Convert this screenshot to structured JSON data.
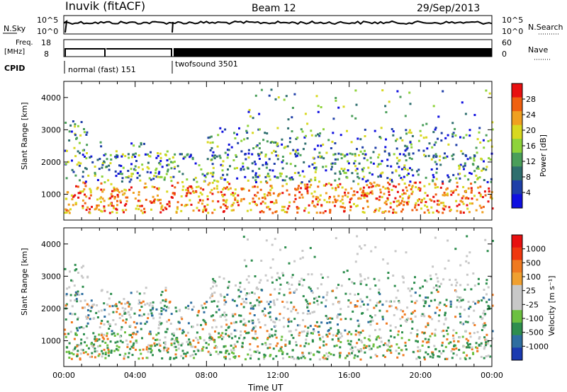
{
  "header": {
    "station": "Inuvik (fitACF)",
    "beam": "Beam 12",
    "date": "29/Sep/2013"
  },
  "panels": {
    "nsky_label": "N.Sky",
    "nsearch_label": "N.Search",
    "freq_label_line1": "Freq.",
    "freq_label_line2": "[MHz]",
    "nave_label": "Nave",
    "cpid_label": "CPID",
    "nsky_ticks": [
      "10^5",
      "10^0"
    ],
    "nsearch_ticks": [
      "10^5",
      "10^0"
    ],
    "freq_ticks": [
      "18",
      "8"
    ],
    "nave_ticks": [
      "60",
      "0"
    ],
    "cpid_segments": [
      {
        "label": "normal (fast) 151",
        "start_hour": 0,
        "end_hour": 6
      },
      {
        "label": "twofsound 3501",
        "start_hour": 6,
        "end_hour": 24
      }
    ]
  },
  "colors": {
    "power": [
      "#1010e0",
      "#1f3fa8",
      "#2e6e6e",
      "#4a9e5a",
      "#8ed33a",
      "#d8d820",
      "#f0a020",
      "#f06010",
      "#e81010"
    ],
    "velocity": [
      "#e81010",
      "#f03810",
      "#f07a20",
      "#f0a030",
      "#c8c8c8",
      "#c8c8c8",
      "#6cc040",
      "#2e8e4e",
      "#2e6ea0",
      "#1a3ab0"
    ]
  },
  "chart_data": [
    {
      "type": "heatmap",
      "title": "Power",
      "xlabel": "",
      "ylabel": "Slant Range [km]",
      "xlim": [
        0,
        24
      ],
      "ylim": [
        200,
        4500
      ],
      "y_ticks": [
        "1000",
        "2000",
        "3000",
        "4000"
      ],
      "colorbar_label": "Power [dB]",
      "colorbar_ticks": [
        "4",
        "8",
        "12",
        "16",
        "20",
        "24",
        "28"
      ],
      "colorbar_range": [
        0,
        30
      ]
    },
    {
      "type": "heatmap",
      "title": "Velocity",
      "xlabel": "Time UT",
      "ylabel": "Slant Range [km]",
      "xlim": [
        0,
        24
      ],
      "ylim": [
        200,
        4500
      ],
      "x_ticks": [
        "00:00",
        "04:00",
        "08:00",
        "12:00",
        "16:00",
        "20:00",
        "00:00"
      ],
      "y_ticks": [
        "1000",
        "2000",
        "3000",
        "4000"
      ],
      "colorbar_label": "Velocity [m s⁻¹]",
      "colorbar_ticks": [
        "1000",
        "500",
        "100",
        "25",
        "-25",
        "-100",
        "-500",
        "-1000"
      ]
    }
  ]
}
